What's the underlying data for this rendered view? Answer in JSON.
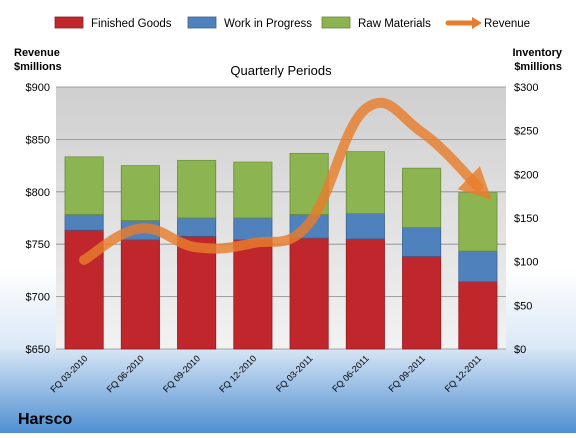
{
  "chart_data": {
    "type": "bar",
    "stacked": true,
    "title": "Quarterly Periods",
    "categories": [
      "FQ 03-2010",
      "FQ 06-2010",
      "FQ 09-2010",
      "FQ 12-2010",
      "FQ 03-2011",
      "FQ 06-2011",
      "FQ 09-2011",
      "FQ 12-2011"
    ],
    "left_axis": {
      "label_line1": "Revenue",
      "label_line2": "$millions",
      "range": [
        650,
        900
      ],
      "ticks": [
        "$650",
        "$700",
        "$750",
        "$800",
        "$850",
        "$900"
      ]
    },
    "right_axis": {
      "label_line1": "Inventory",
      "label_line2": "$millions",
      "range": [
        0,
        300
      ],
      "ticks": [
        "$0",
        "$50",
        "$100",
        "$150",
        "$200",
        "$250",
        "$300"
      ]
    },
    "series": [
      {
        "name": "Finished Goods",
        "axis": "right",
        "color": "#c0272d",
        "values": [
          136,
          125,
          129,
          125,
          127,
          126,
          106,
          77
        ]
      },
      {
        "name": "Work in Progress",
        "axis": "right",
        "color": "#4f81bd",
        "values": [
          18,
          22,
          21,
          25,
          27,
          29,
          33,
          35
        ]
      },
      {
        "name": "Raw Materials",
        "axis": "right",
        "color": "#8cb450",
        "values": [
          66,
          63,
          66,
          64,
          70,
          71,
          68,
          67
        ]
      },
      {
        "name": "Revenue",
        "axis": "left",
        "type": "line",
        "color": "#e87d2c",
        "values": [
          735,
          765,
          747,
          751,
          770,
          879,
          857,
          805
        ]
      }
    ],
    "grid": true,
    "legend_position": "top"
  },
  "brand": {
    "name": "Harsco"
  }
}
